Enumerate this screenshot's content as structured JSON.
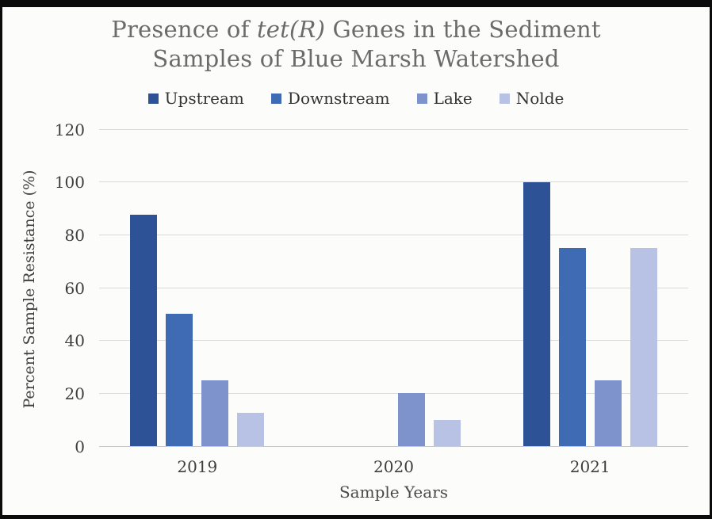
{
  "title": {
    "prefix": "Presence of ",
    "italic": "tet(R)",
    "suffix": " Genes in the Sediment Samples of Blue Marsh Watershed"
  },
  "chart_data": {
    "type": "bar",
    "title": "Presence of tet(R) Genes in the Sediment Samples of Blue Marsh Watershed",
    "categories": [
      "2019",
      "2020",
      "2021"
    ],
    "series": [
      {
        "name": "Upstream",
        "color": "#2e5296",
        "values": [
          87.5,
          0,
          100
        ]
      },
      {
        "name": "Downstream",
        "color": "#3f6bb5",
        "values": [
          50,
          0,
          75
        ]
      },
      {
        "name": "Lake",
        "color": "#7e92cb",
        "values": [
          25,
          20,
          25
        ]
      },
      {
        "name": "Nolde",
        "color": "#b8c2e4",
        "values": [
          12.5,
          10,
          75
        ]
      }
    ],
    "xlabel": "Sample Years",
    "ylabel": "Percent Sample Resistance (%)",
    "ylim": [
      0,
      120
    ],
    "ytick_step": 20,
    "grid": true,
    "legend_position": "top"
  },
  "colors": {
    "title_text": "#6b6b6b",
    "axis_text": "#3e3e3e",
    "gridline": "#d9d9d9",
    "background": "#fcfcfa",
    "frame_border": "#0b0b0b"
  }
}
